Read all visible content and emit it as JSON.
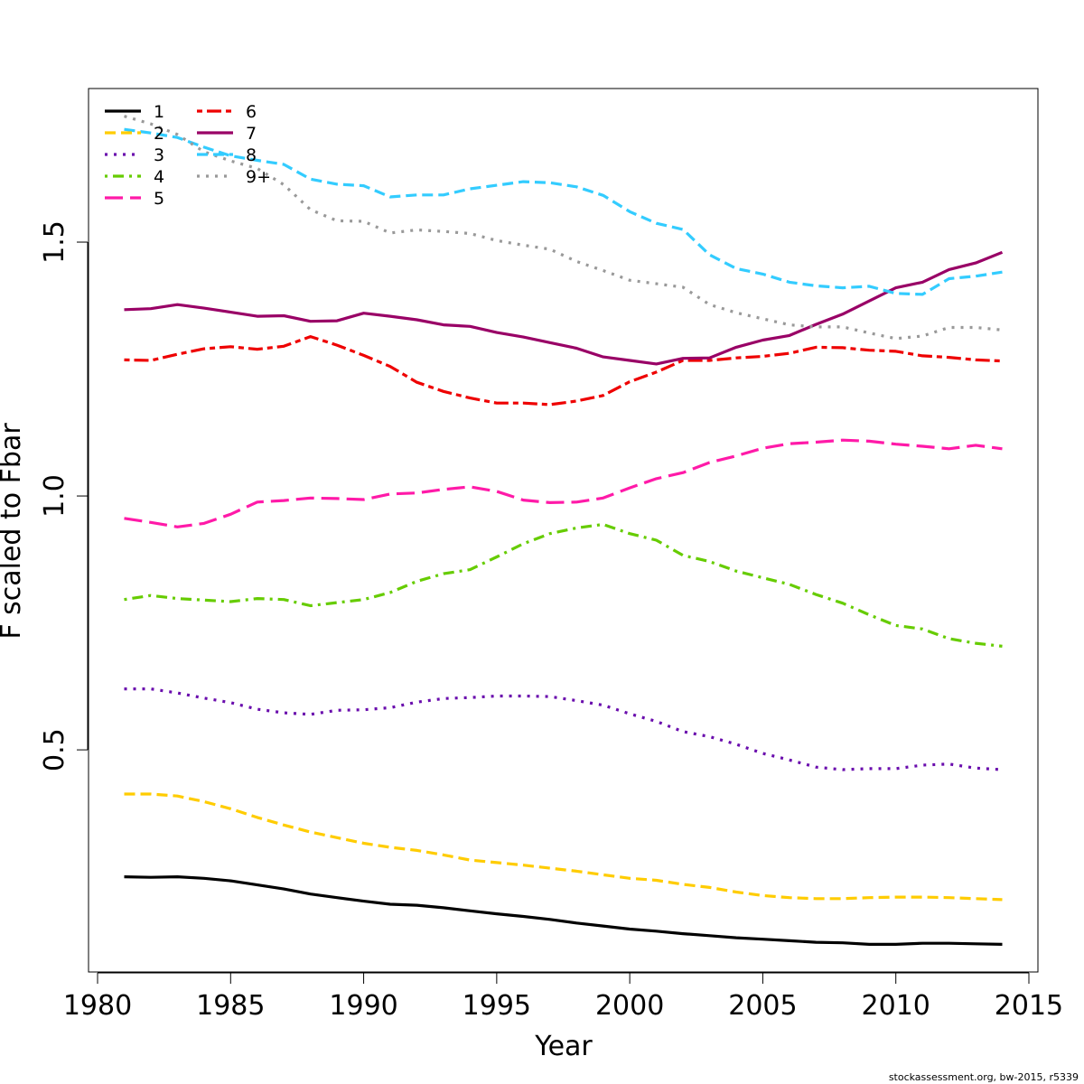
{
  "chart_data": {
    "type": "line",
    "xlabel": "Year",
    "ylabel": "F scaled to Fbar",
    "xlim": [
      1980,
      2015
    ],
    "ylim": [
      0.0,
      1.8
    ],
    "x_ticks": [
      "1980",
      "1985",
      "1990",
      "1995",
      "2000",
      "2005",
      "2010",
      "2015"
    ],
    "y_ticks": [
      "0.5",
      "1.0",
      "1.5"
    ],
    "grid": false,
    "legend_position": "top-left",
    "x": [
      1981,
      1982,
      1983,
      1984,
      1985,
      1986,
      1987,
      1988,
      1989,
      1990,
      1991,
      1992,
      1993,
      1994,
      1995,
      1996,
      1997,
      1998,
      1999,
      2000,
      2001,
      2002,
      2003,
      2004,
      2005,
      2006,
      2007,
      2008,
      2009,
      2010,
      2011,
      2012,
      2013,
      2014
    ],
    "series": [
      {
        "name": "1",
        "color": "#000000",
        "dash": "solid",
        "values": [
          0.25,
          0.249,
          0.25,
          0.247,
          0.242,
          0.234,
          0.226,
          0.216,
          0.209,
          0.202,
          0.196,
          0.194,
          0.189,
          0.183,
          0.177,
          0.172,
          0.166,
          0.159,
          0.153,
          0.147,
          0.143,
          0.138,
          0.134,
          0.13,
          0.127,
          0.124,
          0.121,
          0.12,
          0.117,
          0.117,
          0.119,
          0.119,
          0.118,
          0.117
        ]
      },
      {
        "name": "2",
        "color": "#ffcc00",
        "dash": "dashed",
        "values": [
          0.413,
          0.413,
          0.409,
          0.398,
          0.384,
          0.367,
          0.352,
          0.338,
          0.327,
          0.316,
          0.308,
          0.302,
          0.293,
          0.283,
          0.278,
          0.273,
          0.267,
          0.261,
          0.254,
          0.247,
          0.243,
          0.235,
          0.229,
          0.22,
          0.213,
          0.209,
          0.207,
          0.207,
          0.209,
          0.21,
          0.21,
          0.209,
          0.207,
          0.205
        ]
      },
      {
        "name": "3",
        "color": "#6a0dad",
        "dash": "dotted",
        "values": [
          0.62,
          0.62,
          0.612,
          0.602,
          0.593,
          0.58,
          0.573,
          0.57,
          0.578,
          0.579,
          0.583,
          0.594,
          0.601,
          0.603,
          0.606,
          0.606,
          0.605,
          0.597,
          0.588,
          0.571,
          0.556,
          0.536,
          0.526,
          0.511,
          0.493,
          0.48,
          0.466,
          0.461,
          0.463,
          0.463,
          0.47,
          0.472,
          0.464,
          0.461
        ]
      },
      {
        "name": "4",
        "color": "#66cc00",
        "dash": "dotdash",
        "values": [
          0.796,
          0.804,
          0.798,
          0.795,
          0.792,
          0.798,
          0.796,
          0.784,
          0.79,
          0.796,
          0.81,
          0.832,
          0.847,
          0.855,
          0.88,
          0.906,
          0.926,
          0.937,
          0.944,
          0.926,
          0.913,
          0.883,
          0.871,
          0.852,
          0.839,
          0.826,
          0.806,
          0.789,
          0.766,
          0.745,
          0.738,
          0.719,
          0.71,
          0.704
        ]
      },
      {
        "name": "5",
        "color": "#ff1aa8",
        "dash": "longdash",
        "values": [
          0.956,
          0.948,
          0.939,
          0.946,
          0.964,
          0.988,
          0.991,
          0.996,
          0.995,
          0.993,
          1.004,
          1.006,
          1.013,
          1.018,
          1.009,
          0.992,
          0.987,
          0.988,
          0.996,
          1.016,
          1.034,
          1.046,
          1.066,
          1.079,
          1.094,
          1.103,
          1.106,
          1.11,
          1.108,
          1.102,
          1.098,
          1.093,
          1.1,
          1.093
        ]
      },
      {
        "name": "6",
        "color": "#ee0000",
        "dash": "twodash",
        "values": [
          1.268,
          1.267,
          1.279,
          1.29,
          1.294,
          1.289,
          1.295,
          1.314,
          1.297,
          1.277,
          1.255,
          1.224,
          1.206,
          1.193,
          1.183,
          1.183,
          1.18,
          1.187,
          1.198,
          1.225,
          1.244,
          1.267,
          1.267,
          1.272,
          1.275,
          1.281,
          1.293,
          1.292,
          1.287,
          1.285,
          1.276,
          1.273,
          1.268,
          1.266
        ]
      },
      {
        "name": "7",
        "color": "#990066",
        "dash": "solid",
        "values": [
          1.367,
          1.369,
          1.377,
          1.37,
          1.362,
          1.354,
          1.355,
          1.344,
          1.345,
          1.36,
          1.354,
          1.347,
          1.337,
          1.334,
          1.322,
          1.313,
          1.302,
          1.291,
          1.274,
          1.267,
          1.26,
          1.271,
          1.272,
          1.293,
          1.307,
          1.316,
          1.338,
          1.358,
          1.384,
          1.41,
          1.421,
          1.446,
          1.459,
          1.48
        ]
      },
      {
        "name": "8",
        "color": "#33ccff",
        "dash": "dashed",
        "values": [
          1.722,
          1.715,
          1.706,
          1.687,
          1.67,
          1.661,
          1.653,
          1.624,
          1.614,
          1.611,
          1.589,
          1.593,
          1.593,
          1.605,
          1.612,
          1.619,
          1.617,
          1.609,
          1.592,
          1.56,
          1.537,
          1.525,
          1.475,
          1.448,
          1.437,
          1.421,
          1.414,
          1.41,
          1.413,
          1.399,
          1.397,
          1.428,
          1.433,
          1.441
        ]
      },
      {
        "name": "9+",
        "color": "#999999",
        "dash": "dotted",
        "values": [
          1.748,
          1.733,
          1.712,
          1.678,
          1.66,
          1.645,
          1.613,
          1.564,
          1.542,
          1.541,
          1.518,
          1.524,
          1.521,
          1.517,
          1.503,
          1.494,
          1.486,
          1.462,
          1.444,
          1.425,
          1.418,
          1.411,
          1.377,
          1.361,
          1.349,
          1.337,
          1.333,
          1.333,
          1.321,
          1.31,
          1.315,
          1.332,
          1.332,
          1.327
        ]
      }
    ]
  },
  "footer": "stockassessment.org, bw-2015, r5339"
}
